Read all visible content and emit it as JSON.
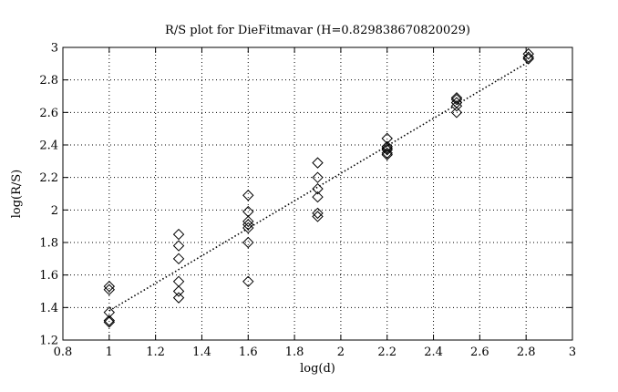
{
  "chart_data": {
    "type": "scatter",
    "title": "R/S plot for DieFitmavar (H=0.829838670820029)",
    "xlabel": "log(d)",
    "ylabel": "log(R/S)",
    "xlim": [
      0.8,
      3
    ],
    "ylim": [
      1.2,
      3
    ],
    "xticks": [
      "0.8",
      "1",
      "1.2",
      "1.4",
      "1.6",
      "1.8",
      "2",
      "2.2",
      "2.4",
      "2.6",
      "2.8",
      "3"
    ],
    "yticks": [
      "1.2",
      "1.4",
      "1.6",
      "1.8",
      "2",
      "2.2",
      "2.4",
      "2.6",
      "2.8",
      "3"
    ],
    "grid": true,
    "marker": "diamond",
    "series": [
      {
        "points": [
          [
            1.0,
            1.53
          ],
          [
            1.0,
            1.51
          ],
          [
            1.0,
            1.37
          ],
          [
            1.0,
            1.32
          ],
          [
            1.0,
            1.31
          ],
          [
            1.3,
            1.85
          ],
          [
            1.3,
            1.78
          ],
          [
            1.3,
            1.7
          ],
          [
            1.3,
            1.56
          ],
          [
            1.3,
            1.5
          ],
          [
            1.3,
            1.46
          ],
          [
            1.6,
            2.09
          ],
          [
            1.6,
            1.99
          ],
          [
            1.6,
            1.93
          ],
          [
            1.6,
            1.91
          ],
          [
            1.6,
            1.89
          ],
          [
            1.6,
            1.8
          ],
          [
            1.6,
            1.56
          ],
          [
            1.9,
            2.29
          ],
          [
            1.9,
            2.2
          ],
          [
            1.9,
            2.13
          ],
          [
            1.9,
            2.08
          ],
          [
            1.9,
            1.98
          ],
          [
            1.9,
            1.96
          ],
          [
            2.2,
            2.44
          ],
          [
            2.2,
            2.39
          ],
          [
            2.2,
            2.38
          ],
          [
            2.2,
            2.37
          ],
          [
            2.2,
            2.35
          ],
          [
            2.2,
            2.34
          ],
          [
            2.5,
            2.69
          ],
          [
            2.5,
            2.68
          ],
          [
            2.5,
            2.66
          ],
          [
            2.5,
            2.64
          ],
          [
            2.5,
            2.6
          ],
          [
            2.81,
            2.96
          ],
          [
            2.81,
            2.94
          ],
          [
            2.81,
            2.93
          ]
        ]
      }
    ],
    "fit_line": {
      "style": "dotted",
      "from": [
        1.0,
        1.38
      ],
      "to": [
        2.81,
        2.91
      ]
    }
  }
}
